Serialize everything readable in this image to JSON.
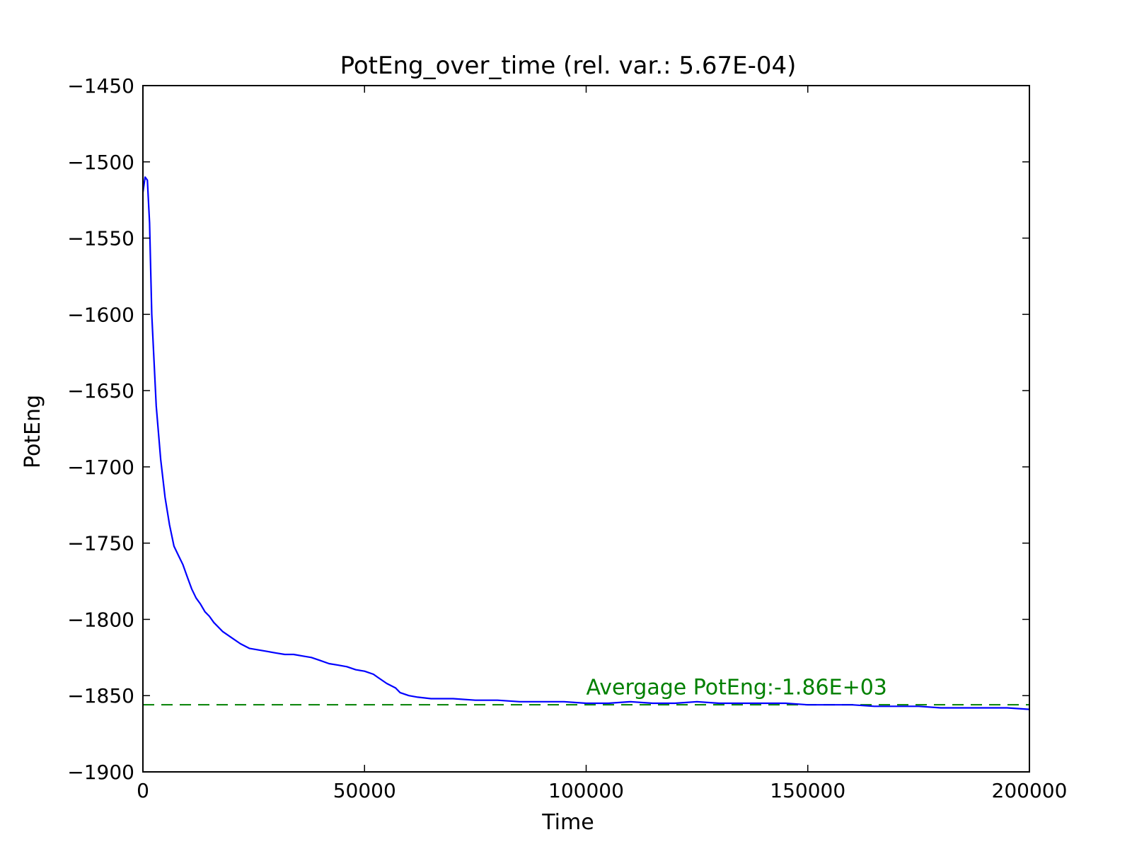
{
  "chart_data": {
    "type": "line",
    "title": "PotEng_over_time (rel. var.: 5.67E-04)",
    "xlabel": "Time",
    "ylabel": "PotEng",
    "xlim": [
      0,
      200000
    ],
    "ylim": [
      -1900,
      -1450
    ],
    "x_ticks": [
      0,
      50000,
      100000,
      150000,
      200000
    ],
    "x_tick_labels": [
      "0",
      "50000",
      "100000",
      "150000",
      "200000"
    ],
    "y_ticks": [
      -1450,
      -1500,
      -1550,
      -1600,
      -1650,
      -1700,
      -1750,
      -1800,
      -1850,
      -1900
    ],
    "y_tick_labels": [
      "−1450",
      "−1500",
      "−1550",
      "−1600",
      "−1650",
      "−1700",
      "−1750",
      "−1800",
      "−1850",
      "−1900"
    ],
    "grid": false,
    "series": [
      {
        "color": "#0000ff",
        "x": [
          0,
          500,
          1000,
          1500,
          2000,
          3000,
          4000,
          5000,
          6000,
          7000,
          8000,
          9000,
          10000,
          11000,
          12000,
          13000,
          14000,
          15000,
          16000,
          18000,
          20000,
          22000,
          24000,
          26000,
          28000,
          30000,
          32000,
          34000,
          36000,
          38000,
          40000,
          42000,
          44000,
          46000,
          48000,
          50000,
          52000,
          53000,
          55000,
          57000,
          58000,
          60000,
          62000,
          65000,
          70000,
          75000,
          80000,
          85000,
          90000,
          95000,
          100000,
          105000,
          110000,
          115000,
          120000,
          125000,
          130000,
          135000,
          140000,
          145000,
          150000,
          155000,
          160000,
          165000,
          170000,
          175000,
          180000,
          185000,
          190000,
          195000,
          200000
        ],
        "y": [
          -1520,
          -1510,
          -1512,
          -1540,
          -1600,
          -1660,
          -1695,
          -1720,
          -1738,
          -1752,
          -1758,
          -1764,
          -1772,
          -1780,
          -1786,
          -1790,
          -1795,
          -1798,
          -1802,
          -1808,
          -1812,
          -1816,
          -1819,
          -1820,
          -1821,
          -1822,
          -1823,
          -1823,
          -1824,
          -1825,
          -1827,
          -1829,
          -1830,
          -1831,
          -1833,
          -1834,
          -1836,
          -1838,
          -1842,
          -1845,
          -1848,
          -1850,
          -1851,
          -1852,
          -1852,
          -1853,
          -1853,
          -1854,
          -1854,
          -1854,
          -1855,
          -1855,
          -1854,
          -1855,
          -1855,
          -1854,
          -1855,
          -1855,
          -1855,
          -1855,
          -1856,
          -1856,
          -1856,
          -1857,
          -1857,
          -1857,
          -1858,
          -1858,
          -1858,
          -1858,
          -1859
        ]
      }
    ],
    "reference_line": {
      "y": -1856,
      "color": "#008000",
      "style": "dashed"
    },
    "annotation": {
      "text": "Avergage PotEng:-1.86E+03",
      "x": 100000,
      "y": -1852,
      "color": "#008000"
    }
  }
}
